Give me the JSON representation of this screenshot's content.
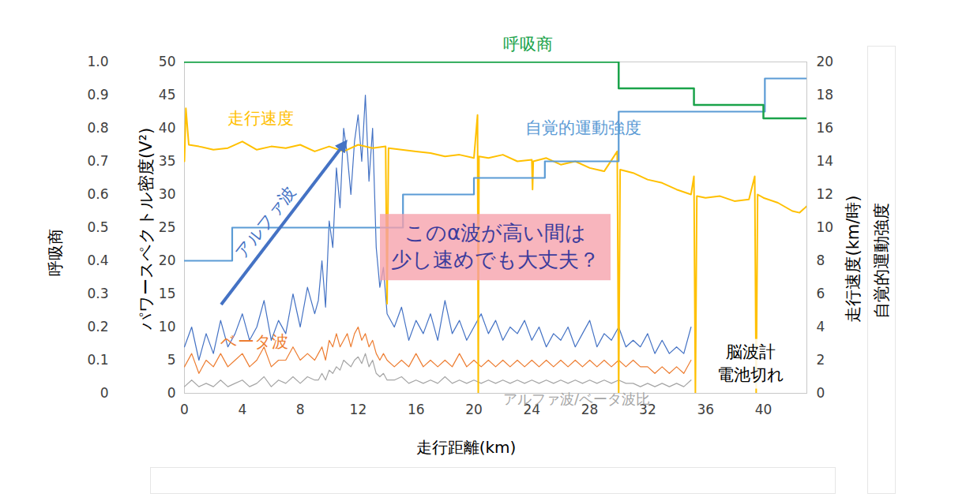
{
  "chart_data": {
    "type": "line",
    "x_label": "走行距離(km)",
    "xlim": [
      0,
      43
    ],
    "xticks": [
      0,
      4,
      8,
      12,
      16,
      20,
      24,
      28,
      32,
      36,
      40
    ],
    "y_label": "パワースペクトル密度(V²)",
    "ylim": [
      0,
      50
    ],
    "yticks": [
      0,
      5,
      10,
      15,
      20,
      25,
      30,
      35,
      40,
      45,
      50
    ],
    "y2_label": "走行速度(km/時)",
    "y2lim": [
      0,
      20
    ],
    "y2ticks": [
      0,
      2,
      4,
      6,
      8,
      10,
      12,
      14,
      16,
      18,
      20
    ],
    "y3_label": "呼吸商",
    "y3lim": [
      0,
      1
    ],
    "y3ticks": [
      0,
      0.1,
      0.2,
      0.3,
      0.4,
      0.5,
      0.6,
      0.7,
      0.8,
      0.9,
      {
        "value": 1,
        "label": "1.0"
      }
    ],
    "y4_label": "自覚的運動強度",
    "x": [
      0,
      0.5,
      1,
      1.5,
      2,
      2.5,
      3,
      3.5,
      4,
      4.5,
      5,
      5.5,
      6,
      6.5,
      7,
      7.5,
      8,
      8.5,
      9,
      9.25,
      9.5,
      9.75,
      10,
      10.25,
      10.5,
      10.75,
      11,
      11.25,
      11.5,
      11.75,
      12,
      12.25,
      12.5,
      12.75,
      13,
      13.25,
      13.5,
      13.75,
      14,
      14.5,
      15,
      15.5,
      16,
      16.5,
      17,
      17.5,
      18,
      18.5,
      19,
      19.5,
      20,
      20.5,
      21,
      21.5,
      22,
      22.5,
      23,
      23.5,
      24,
      24.5,
      25,
      25.5,
      26,
      26.5,
      27,
      27.5,
      28,
      28.5,
      29,
      29.5,
      30,
      30.5,
      31,
      31.5,
      32,
      32.5,
      33,
      33.5,
      34,
      34.5,
      35
    ],
    "series": [
      {
        "name": "アルファ波",
        "color": "#4472c4",
        "type": "line",
        "values": [
          7,
          10,
          5,
          9,
          6,
          11,
          7,
          9,
          12,
          8,
          10,
          14,
          8,
          11,
          9,
          15,
          10,
          16,
          12,
          14,
          20,
          13,
          26,
          22,
          34,
          28,
          40,
          36,
          30,
          38,
          42,
          35,
          45,
          32,
          40,
          22,
          16,
          19,
          12,
          10,
          13,
          8,
          11,
          9,
          12,
          8,
          14,
          9,
          11,
          8,
          10,
          12,
          9,
          11,
          8,
          10,
          9,
          11,
          8,
          10,
          7,
          9,
          8,
          10,
          7,
          9,
          11,
          7,
          9,
          8,
          10,
          7,
          8,
          7,
          9,
          6,
          8,
          6,
          7,
          6,
          10
        ]
      },
      {
        "name": "ベータ波",
        "color": "#ed7d31",
        "type": "line",
        "values": [
          4,
          6,
          3,
          5,
          4,
          6,
          4,
          5,
          6,
          4,
          5,
          7,
          4,
          5,
          5,
          7,
          5,
          6,
          5,
          6,
          7,
          5,
          8,
          7,
          9,
          7,
          8,
          9,
          7,
          9,
          10,
          8,
          9,
          7,
          8,
          6,
          5,
          6,
          5,
          4,
          5,
          4,
          6,
          4,
          5,
          4,
          5,
          4,
          6,
          4,
          5,
          4,
          5,
          4,
          5,
          4,
          5,
          4,
          5,
          4,
          5,
          4,
          5,
          4,
          5,
          4,
          5,
          4,
          5,
          4,
          5,
          4,
          5,
          4,
          4,
          3,
          4,
          3,
          4,
          3,
          5
        ]
      },
      {
        "name": "アルファ波/ベータ波比",
        "color": "#a5a5a5",
        "type": "line",
        "values": [
          1,
          2,
          1,
          1.5,
          1,
          2,
          1,
          1.5,
          2,
          1,
          1.5,
          2.5,
          1,
          2,
          1.5,
          2.5,
          1.5,
          2.5,
          2,
          2,
          3,
          2,
          3.5,
          3,
          4,
          3.5,
          5,
          4.5,
          4,
          5,
          5.5,
          4.5,
          6,
          4,
          5,
          3,
          2.5,
          3,
          2,
          2,
          2.5,
          1.5,
          2,
          1.5,
          2,
          1.5,
          2.5,
          1.5,
          2,
          1.5,
          2,
          1.5,
          2,
          1.5,
          2,
          1.5,
          2,
          1.5,
          2,
          1.5,
          2,
          1.5,
          2,
          1.5,
          2,
          1.5,
          2,
          1.5,
          2,
          1.5,
          2,
          1.5,
          1.5,
          1,
          1.5,
          1,
          1.5,
          1,
          1.5,
          1,
          2
        ]
      },
      {
        "name": "走行速度",
        "color": "#ffc000",
        "type": "line",
        "axis": "y2",
        "x": [
          0,
          0.1,
          0.3,
          1,
          2,
          3,
          4,
          5,
          6,
          7,
          8,
          9,
          10,
          11,
          12,
          13,
          13.9,
          14,
          14.1,
          15,
          16,
          17,
          18,
          19,
          20,
          20.25,
          20.3,
          20.35,
          21,
          22,
          23,
          24,
          24.05,
          24.1,
          25,
          26,
          27,
          28,
          29,
          29.9,
          30,
          30.1,
          31,
          32,
          33,
          34,
          35,
          35.2,
          35.3,
          35.4,
          36,
          37,
          38,
          39,
          39.4,
          39.5,
          39.6,
          40,
          41,
          42,
          42.5,
          43
        ],
        "values": [
          14.0,
          17.2,
          15.0,
          14.9,
          14.7,
          14.8,
          15.2,
          14.7,
          14.9,
          14.8,
          15.0,
          14.6,
          14.9,
          14.6,
          15.0,
          14.8,
          14.9,
          5.4,
          14.8,
          14.7,
          14.6,
          14.5,
          14.3,
          14.4,
          14.2,
          16.8,
          0,
          14.3,
          14.2,
          14.4,
          14.0,
          14.1,
          12.3,
          14.0,
          14.2,
          13.8,
          14.0,
          13.6,
          13.4,
          14.6,
          0,
          13.5,
          13.3,
          12.9,
          12.7,
          12.3,
          12.0,
          13.1,
          0,
          11.9,
          11.8,
          11.9,
          11.6,
          11.7,
          13.1,
          0,
          12.0,
          11.8,
          11.5,
          11.0,
          10.9,
          11.3
        ]
      },
      {
        "name": "自覚的運動強度",
        "color": "#5b9bd5",
        "type": "step",
        "axis": "y2",
        "x": [
          0,
          3.3,
          15.1,
          20,
          24.9,
          30,
          40.1,
          43
        ],
        "values": [
          8,
          10,
          12,
          13,
          14,
          17,
          19,
          19
        ]
      },
      {
        "name": "呼吸商",
        "color": "#1aa34a",
        "type": "step",
        "axis": "y3",
        "x": [
          0,
          30,
          35.2,
          40,
          43
        ],
        "values": [
          1.0,
          0.92,
          0.87,
          0.83,
          0.83
        ]
      }
    ],
    "annotations": [
      {
        "text": "このα波が高い間は\n少し速めでも大丈夫？"
      },
      {
        "text": "脳波計\n電池切れ"
      }
    ]
  }
}
